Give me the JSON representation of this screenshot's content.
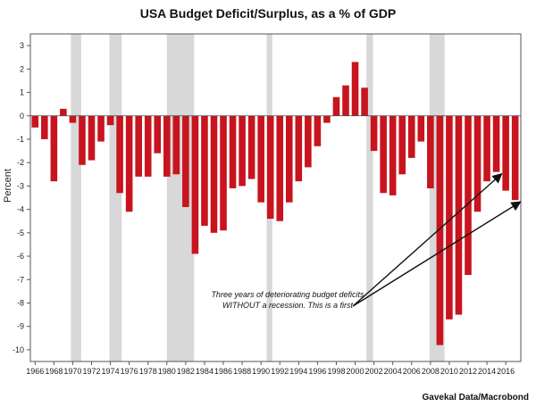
{
  "chart_data": {
    "type": "bar",
    "title": "USA Budget Deficit/Surplus, as a % of GDP",
    "ylabel": "Percent",
    "xlabel": "",
    "source": "Gavekal Data/Macrobond",
    "ylim": [
      -10.5,
      3.5
    ],
    "yticks": [
      3,
      2,
      1,
      0,
      -1,
      -2,
      -3,
      -4,
      -5,
      -6,
      -7,
      -8,
      -9,
      -10
    ],
    "xtick_labels": [
      "1966",
      "1968",
      "1970",
      "1972",
      "1974",
      "1976",
      "1978",
      "1980",
      "1982",
      "1984",
      "1986",
      "1988",
      "1990",
      "1992",
      "1994",
      "1996",
      "1998",
      "2000",
      "2002",
      "2004",
      "2006",
      "2008",
      "2010",
      "2012",
      "2014",
      "2016"
    ],
    "grid": false,
    "bar_color": "#c8141e",
    "recession_color": "#d8d8d8",
    "series": [
      {
        "x": [
          1966,
          1967,
          1968,
          1969,
          1970,
          1971,
          1972,
          1973,
          1974,
          1975,
          1976,
          1977,
          1978,
          1979,
          1980,
          1981,
          1982,
          1983,
          1984,
          1985,
          1986,
          1987,
          1988,
          1989,
          1990,
          1991,
          1992,
          1993,
          1994,
          1995,
          1996,
          1997,
          1998,
          1999,
          2000,
          2001,
          2002,
          2003,
          2004,
          2005,
          2006,
          2007,
          2008,
          2009,
          2010,
          2011,
          2012,
          2013,
          2014,
          2015,
          2016,
          2017
        ],
        "values": [
          -0.5,
          -1.0,
          -2.8,
          0.3,
          -0.3,
          -2.1,
          -1.9,
          -1.1,
          -0.4,
          -3.3,
          -4.1,
          -2.6,
          -2.6,
          -1.6,
          -2.6,
          -2.5,
          -3.9,
          -5.9,
          -4.7,
          -5.0,
          -4.9,
          -3.1,
          -3.0,
          -2.7,
          -3.7,
          -4.4,
          -4.5,
          -3.7,
          -2.8,
          -2.2,
          -1.3,
          -0.3,
          0.8,
          1.3,
          2.3,
          1.2,
          -1.5,
          -3.3,
          -3.4,
          -2.5,
          -1.8,
          -1.1,
          -3.1,
          -9.8,
          -8.7,
          -8.5,
          -6.8,
          -4.1,
          -2.8,
          -2.4,
          -3.2,
          -3.6
        ]
      }
    ],
    "recessions": [
      [
        1969.8,
        1970.9
      ],
      [
        1973.9,
        1975.2
      ],
      [
        1980.0,
        1982.9
      ],
      [
        1990.6,
        1991.2
      ],
      [
        2001.2,
        2001.9
      ],
      [
        2007.9,
        2009.5
      ]
    ],
    "annotations": [
      {
        "lines": [
          "Three years of deteriorating budget deficits",
          "WITHOUT a recession. This is a first"
        ],
        "arrow_targets": [
          [
            2015,
            -2.4
          ],
          [
            2017,
            -3.6
          ]
        ]
      }
    ]
  }
}
